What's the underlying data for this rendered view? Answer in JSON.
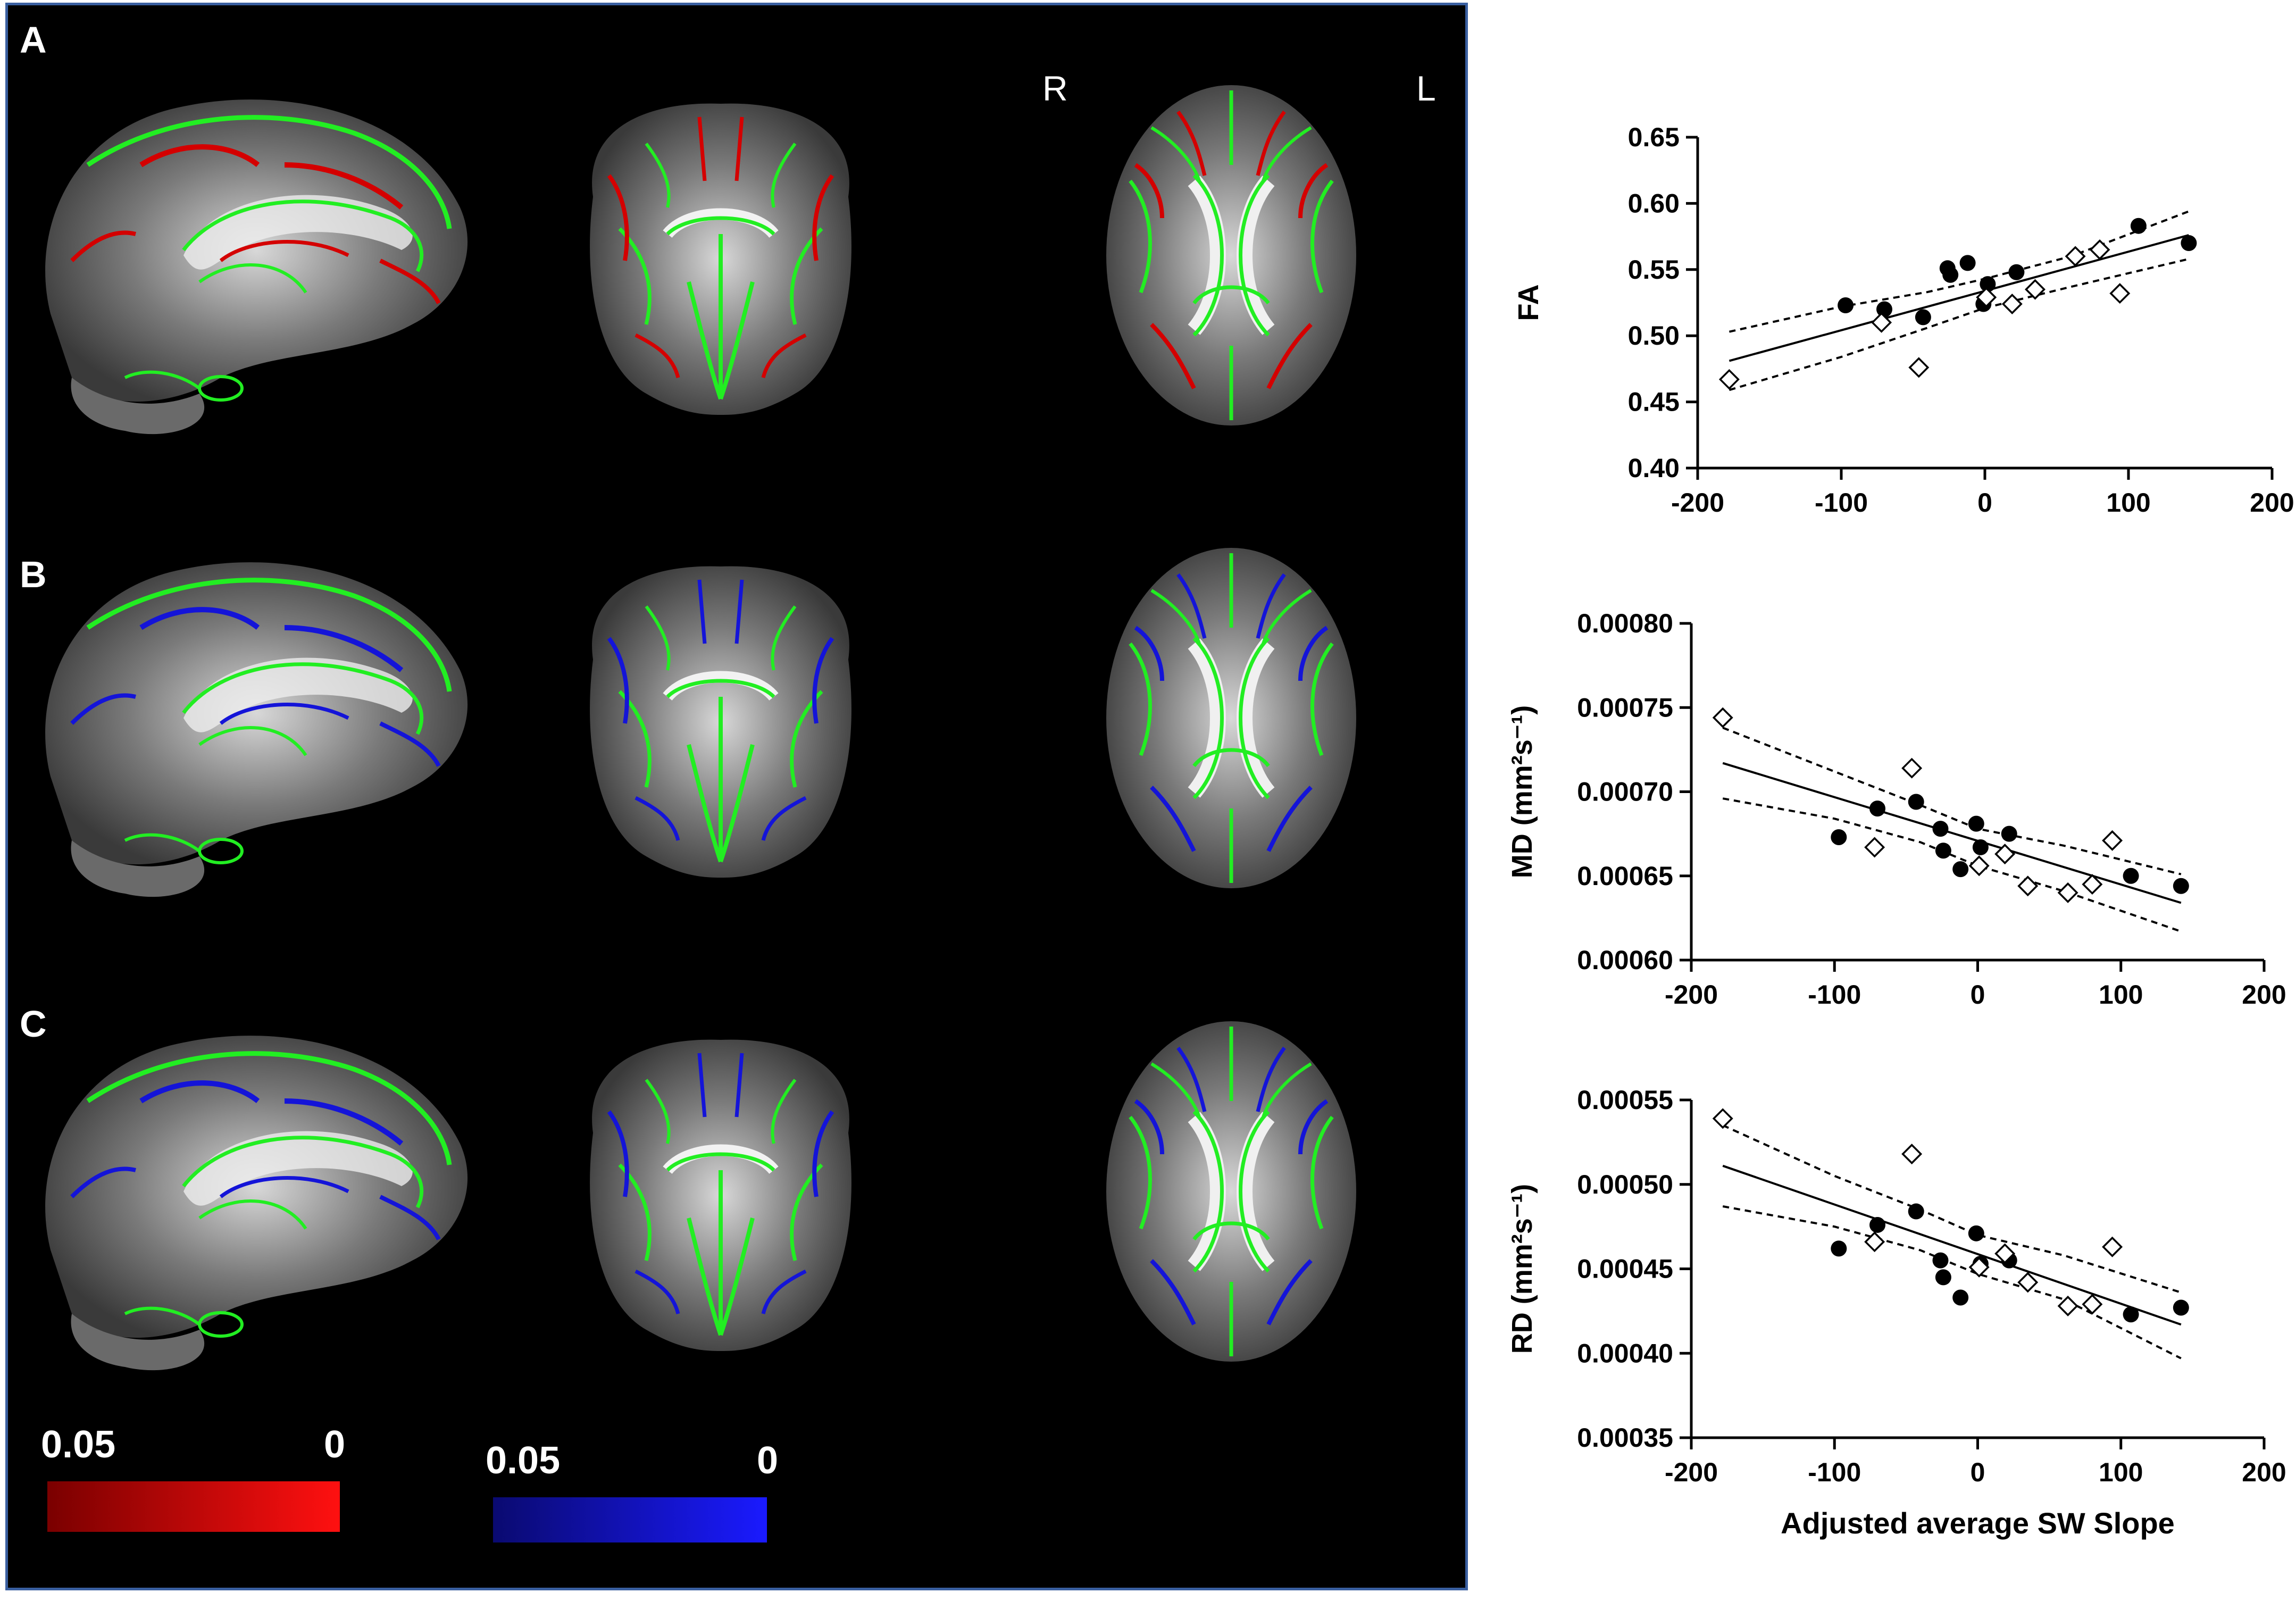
{
  "panels": {
    "labels": [
      "A",
      "B",
      "C"
    ],
    "orientation": {
      "right": "R",
      "left": "L"
    }
  },
  "colorbars": [
    {
      "max_label": "0.05",
      "min_label": "0",
      "from_color": "#7a0000",
      "to_color": "#ff1010"
    },
    {
      "max_label": "0.05",
      "min_label": "0",
      "from_color": "#0a0a70",
      "to_color": "#1a1aff"
    }
  ],
  "colors": {
    "skeleton": "#22ee22",
    "fa_sig": "#d40000",
    "md_sig": "#1414d8",
    "background": "#000000"
  },
  "chart_data": [
    {
      "type": "scatter",
      "xlabel": "",
      "ylabel": "FA",
      "xlim": [
        -200,
        200
      ],
      "ylim": [
        0.4,
        0.65
      ],
      "xticks": [
        -200,
        -100,
        0,
        100,
        200
      ],
      "yticks": [
        0.4,
        0.45,
        0.5,
        0.55,
        0.6,
        0.65
      ],
      "ytick_labels": [
        "0.40",
        "0.45",
        "0.50",
        "0.55",
        "0.60",
        "0.65"
      ],
      "series": [
        {
          "marker": "filled-circle",
          "points": [
            [
              -97,
              0.523
            ],
            [
              -70,
              0.52
            ],
            [
              -43,
              0.514
            ],
            [
              -26,
              0.551
            ],
            [
              -24,
              0.546
            ],
            [
              -12,
              0.555
            ],
            [
              -1,
              0.524
            ],
            [
              2,
              0.539
            ],
            [
              22,
              0.548
            ],
            [
              107,
              0.583
            ],
            [
              142,
              0.57
            ]
          ]
        },
        {
          "marker": "open-diamond",
          "points": [
            [
              -178,
              0.467
            ],
            [
              -72,
              0.51
            ],
            [
              -46,
              0.476
            ],
            [
              1,
              0.529
            ],
            [
              19,
              0.524
            ],
            [
              35,
              0.535
            ],
            [
              63,
              0.56
            ],
            [
              80,
              0.565
            ],
            [
              94,
              0.532
            ]
          ]
        }
      ],
      "fit": {
        "x": [
          -178,
          142
        ],
        "y": [
          0.481,
          0.576
        ]
      },
      "ci_upper": {
        "x": [
          -178,
          -100,
          -40,
          0,
          60,
          142
        ],
        "y": [
          0.503,
          0.522,
          0.533,
          0.543,
          0.56,
          0.594
        ]
      },
      "ci_lower": {
        "x": [
          -178,
          -100,
          -40,
          0,
          60,
          142
        ],
        "y": [
          0.459,
          0.484,
          0.506,
          0.521,
          0.537,
          0.558
        ]
      }
    },
    {
      "type": "scatter",
      "xlabel": "",
      "ylabel": "MD (mm²s⁻¹)",
      "xlim": [
        -200,
        200
      ],
      "ylim": [
        0.0006,
        0.0008
      ],
      "xticks": [
        -200,
        -100,
        0,
        100,
        200
      ],
      "yticks": [
        0.0006,
        0.00065,
        0.0007,
        0.00075,
        0.0008
      ],
      "ytick_labels": [
        "0.00060",
        "0.00065",
        "0.00070",
        "0.00075",
        "0.00080"
      ],
      "series": [
        {
          "marker": "filled-circle",
          "points": [
            [
              -97,
              0.000673
            ],
            [
              -70,
              0.00069
            ],
            [
              -43,
              0.000694
            ],
            [
              -26,
              0.000678
            ],
            [
              -24,
              0.000665
            ],
            [
              -12,
              0.000654
            ],
            [
              -1,
              0.000681
            ],
            [
              2,
              0.000667
            ],
            [
              22,
              0.000675
            ],
            [
              107,
              0.00065
            ],
            [
              142,
              0.000644
            ]
          ]
        },
        {
          "marker": "open-diamond",
          "points": [
            [
              -178,
              0.000744
            ],
            [
              -72,
              0.000667
            ],
            [
              -46,
              0.000714
            ],
            [
              1,
              0.000656
            ],
            [
              19,
              0.000663
            ],
            [
              35,
              0.000644
            ],
            [
              63,
              0.00064
            ],
            [
              80,
              0.000645
            ],
            [
              94,
              0.000671
            ]
          ]
        }
      ],
      "fit": {
        "x": [
          -178,
          142
        ],
        "y": [
          0.000717,
          0.000634
        ]
      },
      "ci_upper": {
        "x": [
          -178,
          -100,
          -40,
          0,
          60,
          142
        ],
        "y": [
          0.000738,
          0.000712,
          0.000692,
          0.000678,
          0.000668,
          0.000651
        ]
      },
      "ci_lower": {
        "x": [
          -178,
          -100,
          -40,
          0,
          60,
          142
        ],
        "y": [
          0.000696,
          0.000684,
          0.00067,
          0.000656,
          0.000641,
          0.000617
        ]
      }
    },
    {
      "type": "scatter",
      "xlabel": "Adjusted average SW Slope",
      "ylabel": "RD (mm²s⁻¹)",
      "xlim": [
        -200,
        200
      ],
      "ylim": [
        0.00035,
        0.00055
      ],
      "xticks": [
        -200,
        -100,
        0,
        100,
        200
      ],
      "yticks": [
        0.00035,
        0.0004,
        0.00045,
        0.0005,
        0.00055
      ],
      "ytick_labels": [
        "0.00035",
        "0.00040",
        "0.00045",
        "0.00050",
        "0.00055"
      ],
      "series": [
        {
          "marker": "filled-circle",
          "points": [
            [
              -97,
              0.000462
            ],
            [
              -70,
              0.000476
            ],
            [
              -43,
              0.000484
            ],
            [
              -26,
              0.000455
            ],
            [
              -24,
              0.000445
            ],
            [
              -12,
              0.000433
            ],
            [
              -1,
              0.000471
            ],
            [
              2,
              0.000453
            ],
            [
              22,
              0.000455
            ],
            [
              107,
              0.000423
            ],
            [
              142,
              0.000427
            ]
          ]
        },
        {
          "marker": "open-diamond",
          "points": [
            [
              -178,
              0.000539
            ],
            [
              -72,
              0.000466
            ],
            [
              -46,
              0.000518
            ],
            [
              1,
              0.000451
            ],
            [
              19,
              0.000459
            ],
            [
              35,
              0.000442
            ],
            [
              63,
              0.000428
            ],
            [
              80,
              0.000429
            ],
            [
              94,
              0.000463
            ]
          ]
        }
      ],
      "fit": {
        "x": [
          -178,
          142
        ],
        "y": [
          0.000511,
          0.000417
        ]
      },
      "ci_upper": {
        "x": [
          -178,
          -100,
          -40,
          0,
          60,
          142
        ],
        "y": [
          0.000535,
          0.000505,
          0.000485,
          0.00047,
          0.000458,
          0.000436
        ]
      },
      "ci_lower": {
        "x": [
          -178,
          -100,
          -40,
          0,
          60,
          142
        ],
        "y": [
          0.000487,
          0.000475,
          0.000461,
          0.000447,
          0.000432,
          0.000397
        ]
      }
    }
  ]
}
